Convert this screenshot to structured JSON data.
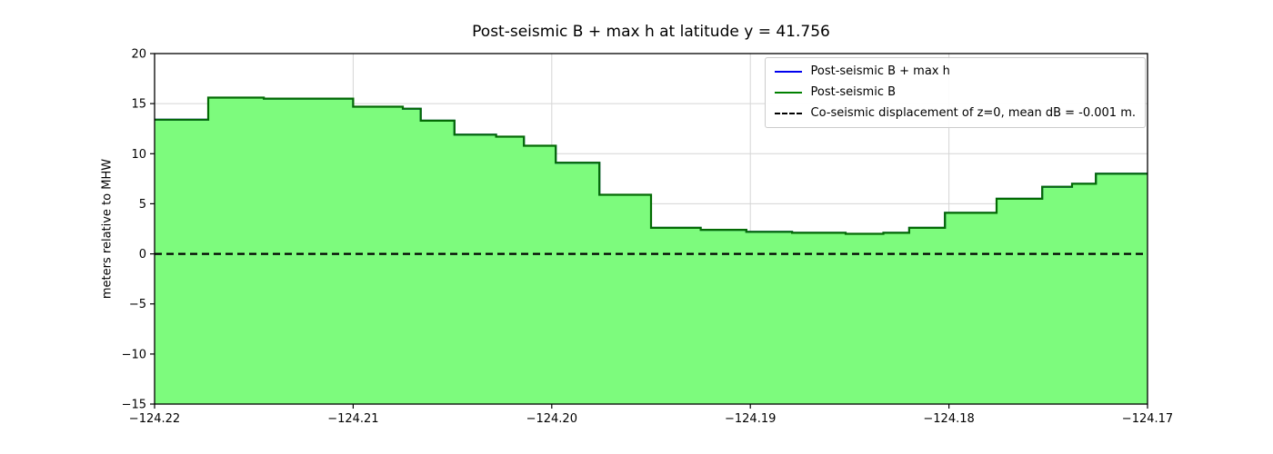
{
  "chart_data": {
    "type": "area",
    "subtype": "step-area",
    "title": "Post-seismic B + max h at latitude y = 41.756",
    "ylabel": "meters relative to MHW",
    "xlabel": "",
    "xlim": [
      -124.22,
      -124.17
    ],
    "ylim": [
      -15,
      20
    ],
    "grid": true,
    "legend_position": "upper right",
    "xticks": {
      "values": [
        -124.22,
        -124.21,
        -124.2,
        -124.19,
        -124.18,
        -124.17
      ],
      "labels": [
        "−124.22",
        "−124.21",
        "−124.20",
        "−124.19",
        "−124.18",
        "−124.17"
      ]
    },
    "yticks": {
      "values": [
        -15,
        -10,
        -5,
        0,
        5,
        10,
        15,
        20
      ],
      "labels": [
        "−15",
        "−10",
        "−5",
        "0",
        "5",
        "10",
        "15",
        "20"
      ]
    },
    "legend": [
      {
        "label": "Post-seismic B + max h",
        "color": "#0000ee",
        "style": "solid"
      },
      {
        "label": "Post-seismic B",
        "color": "#008000",
        "style": "solid"
      },
      {
        "label": "Co-seismic displacement of z=0, mean dB = -0.001 m.",
        "color": "#000000",
        "style": "dashed"
      }
    ],
    "fill_color": "#7dfb7d",
    "edge_color": "#046b04",
    "overlay_line_color": "#0000ee",
    "zero_line": {
      "y": 0,
      "color": "#000000",
      "style": "dashed"
    },
    "x_end": -124.17,
    "steps": [
      {
        "x": -124.22,
        "b": 13.4
      },
      {
        "x": -124.2173,
        "b": 15.6
      },
      {
        "x": -124.2145,
        "b": 15.5
      },
      {
        "x": -124.21,
        "b": 14.7
      },
      {
        "x": -124.2075,
        "b": 14.5
      },
      {
        "x": -124.2066,
        "b": 13.3
      },
      {
        "x": -124.2049,
        "b": 11.9
      },
      {
        "x": -124.2028,
        "b": 11.7
      },
      {
        "x": -124.2014,
        "b": 10.8
      },
      {
        "x": -124.1998,
        "b": 9.1
      },
      {
        "x": -124.1976,
        "b": 5.9
      },
      {
        "x": -124.195,
        "b": 2.6
      },
      {
        "x": -124.1925,
        "b": 2.4
      },
      {
        "x": -124.1902,
        "b": 2.2
      },
      {
        "x": -124.1879,
        "b": 2.1
      },
      {
        "x": -124.1852,
        "b": 2.0
      },
      {
        "x": -124.1833,
        "b": 2.1
      },
      {
        "x": -124.182,
        "b": 2.6
      },
      {
        "x": -124.1802,
        "b": 4.1
      },
      {
        "x": -124.1776,
        "b": 5.5
      },
      {
        "x": -124.1753,
        "b": 6.7
      },
      {
        "x": -124.1738,
        "b": 7.0
      },
      {
        "x": -124.1726,
        "b": 8.0
      }
    ]
  }
}
